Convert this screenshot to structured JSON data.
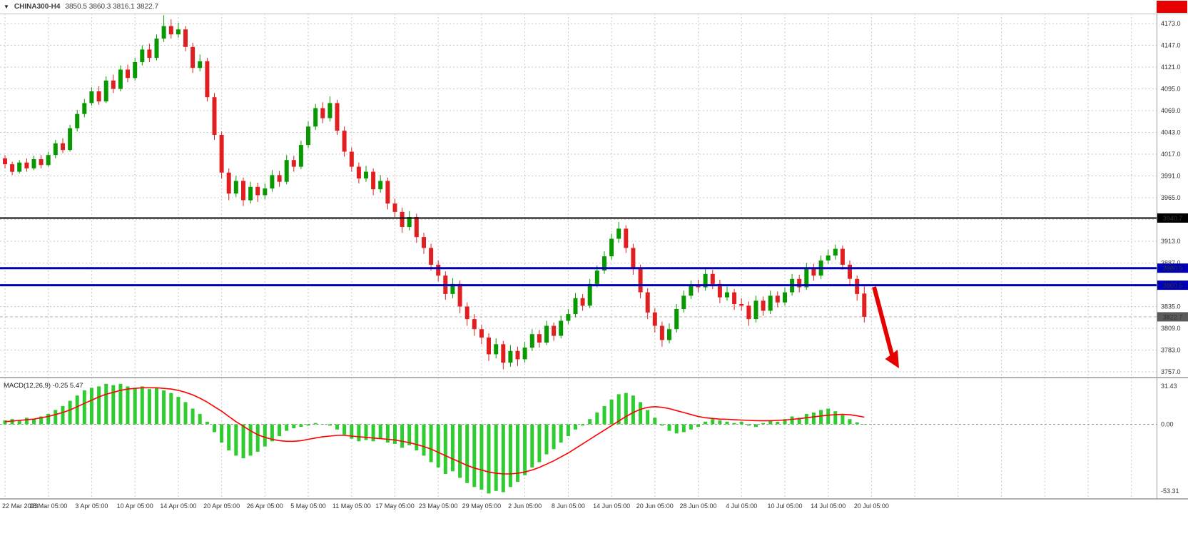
{
  "header": {
    "symbol": "CHINA300-H4",
    "ohlc": "3850.5 3860.3 3816.1 3822.7"
  },
  "icons": {
    "dropdown": "▼"
  },
  "chart_data": {
    "type": "candlestick",
    "symbol": "CHINA300",
    "timeframe": "H4",
    "y_axis": {
      "top": 4173.0,
      "bottom": 3757.0,
      "grid_step": 26.0,
      "ticks_shown": [
        4173.0,
        4147.0,
        4121.0,
        4095.0,
        4069.0,
        4043.0,
        4017.0,
        3991.0,
        3965.0,
        3913.0,
        3887.0,
        3835.0,
        3809.0,
        3783.0,
        3757.0
      ]
    },
    "x_labels": [
      "22 Mar 2023",
      "28 Mar 05:00",
      "3 Apr 05:00",
      "10 Apr 05:00",
      "14 Apr 05:00",
      "20 Apr 05:00",
      "26 Apr 05:00",
      "5 May 05:00",
      "11 May 05:00",
      "17 May 05:00",
      "23 May 05:00",
      "29 May 05:00",
      "2 Jun 05:00",
      "8 Jun 05:00",
      "14 Jun 05:00",
      "20 Jun 05:00",
      "28 Jun 05:00",
      "4 Jul 05:00",
      "10 Jul 05:00",
      "14 Jul 05:00",
      "20 Jul 05:00"
    ],
    "candles_per_label_interval": 6,
    "candles": [
      [
        4012,
        4016,
        4000,
        4005
      ],
      [
        4005,
        4008,
        3992,
        3996
      ],
      [
        3996,
        4010,
        3994,
        4007
      ],
      [
        4007,
        4012,
        3996,
        4000
      ],
      [
        4000,
        4015,
        3998,
        4011
      ],
      [
        4011,
        4016,
        4000,
        4004
      ],
      [
        4004,
        4020,
        4002,
        4016
      ],
      [
        4016,
        4034,
        4012,
        4030
      ],
      [
        4030,
        4036,
        4018,
        4022
      ],
      [
        4022,
        4052,
        4020,
        4048
      ],
      [
        4048,
        4070,
        4044,
        4065
      ],
      [
        4065,
        4083,
        4061,
        4078
      ],
      [
        4078,
        4097,
        4075,
        4092
      ],
      [
        4092,
        4098,
        4076,
        4080
      ],
      [
        4080,
        4110,
        4078,
        4105
      ],
      [
        4105,
        4112,
        4090,
        4095
      ],
      [
        4095,
        4123,
        4092,
        4118
      ],
      [
        4118,
        4124,
        4103,
        4108
      ],
      [
        4108,
        4132,
        4105,
        4127
      ],
      [
        4127,
        4147,
        4123,
        4142
      ],
      [
        4142,
        4149,
        4127,
        4132
      ],
      [
        4132,
        4160,
        4129,
        4155
      ],
      [
        4155,
        4183,
        4151,
        4170
      ],
      [
        4170,
        4178,
        4155,
        4160
      ],
      [
        4160,
        4174,
        4156,
        4166
      ],
      [
        4166,
        4170,
        4140,
        4145
      ],
      [
        4145,
        4150,
        4114,
        4120
      ],
      [
        4120,
        4136,
        4116,
        4128
      ],
      [
        4128,
        4132,
        4080,
        4085
      ],
      [
        4085,
        4090,
        4034,
        4040
      ],
      [
        4040,
        4044,
        3988,
        3995
      ],
      [
        3995,
        4000,
        3962,
        3970
      ],
      [
        3970,
        3991,
        3966,
        3985
      ],
      [
        3985,
        3989,
        3955,
        3962
      ],
      [
        3962,
        3984,
        3958,
        3978
      ],
      [
        3978,
        3983,
        3960,
        3968
      ],
      [
        3968,
        3982,
        3963,
        3976
      ],
      [
        3976,
        3998,
        3972,
        3992
      ],
      [
        3992,
        3997,
        3978,
        3984
      ],
      [
        3984,
        4016,
        3981,
        4010
      ],
      [
        4010,
        4015,
        3996,
        4002
      ],
      [
        4002,
        4033,
        3999,
        4028
      ],
      [
        4028,
        4056,
        4024,
        4050
      ],
      [
        4050,
        4077,
        4046,
        4072
      ],
      [
        4072,
        4079,
        4054,
        4060
      ],
      [
        4060,
        4086,
        4056,
        4078
      ],
      [
        4078,
        4082,
        4040,
        4045
      ],
      [
        4045,
        4050,
        4014,
        4020
      ],
      [
        4020,
        4025,
        3996,
        4002
      ],
      [
        4002,
        4007,
        3982,
        3988
      ],
      [
        3988,
        4003,
        3984,
        3996
      ],
      [
        3996,
        4000,
        3968,
        3975
      ],
      [
        3975,
        3992,
        3971,
        3985
      ],
      [
        3985,
        3989,
        3951,
        3958
      ],
      [
        3958,
        3964,
        3942,
        3948
      ],
      [
        3948,
        3953,
        3923,
        3930
      ],
      [
        3930,
        3949,
        3926,
        3942
      ],
      [
        3942,
        3946,
        3911,
        3918
      ],
      [
        3918,
        3923,
        3898,
        3905
      ],
      [
        3905,
        3910,
        3878,
        3885
      ],
      [
        3885,
        3890,
        3865,
        3872
      ],
      [
        3872,
        3877,
        3843,
        3850
      ],
      [
        3850,
        3869,
        3845,
        3862
      ],
      [
        3862,
        3866,
        3827,
        3835
      ],
      [
        3835,
        3840,
        3812,
        3820
      ],
      [
        3820,
        3826,
        3800,
        3808
      ],
      [
        3808,
        3813,
        3790,
        3798
      ],
      [
        3798,
        3803,
        3770,
        3778
      ],
      [
        3778,
        3797,
        3773,
        3790
      ],
      [
        3790,
        3794,
        3760,
        3768
      ],
      [
        3768,
        3789,
        3763,
        3782
      ],
      [
        3782,
        3787,
        3764,
        3772
      ],
      [
        3772,
        3793,
        3768,
        3786
      ],
      [
        3786,
        3808,
        3782,
        3802
      ],
      [
        3802,
        3807,
        3786,
        3792
      ],
      [
        3792,
        3818,
        3789,
        3812
      ],
      [
        3812,
        3816,
        3794,
        3800
      ],
      [
        3800,
        3824,
        3797,
        3818
      ],
      [
        3818,
        3832,
        3814,
        3826
      ],
      [
        3826,
        3851,
        3822,
        3845
      ],
      [
        3845,
        3850,
        3830,
        3836
      ],
      [
        3836,
        3868,
        3833,
        3862
      ],
      [
        3862,
        3884,
        3858,
        3878
      ],
      [
        3878,
        3901,
        3874,
        3895
      ],
      [
        3895,
        3922,
        3891,
        3916
      ],
      [
        3916,
        3936,
        3911,
        3928
      ],
      [
        3928,
        3932,
        3899,
        3905
      ],
      [
        3905,
        3910,
        3873,
        3880
      ],
      [
        3880,
        3885,
        3845,
        3852
      ],
      [
        3852,
        3857,
        3820,
        3828
      ],
      [
        3828,
        3833,
        3804,
        3812
      ],
      [
        3812,
        3817,
        3787,
        3795
      ],
      [
        3795,
        3815,
        3791,
        3808
      ],
      [
        3808,
        3838,
        3804,
        3832
      ],
      [
        3832,
        3854,
        3828,
        3848
      ],
      [
        3848,
        3866,
        3844,
        3860
      ],
      [
        3860,
        3867,
        3852,
        3858
      ],
      [
        3858,
        3881,
        3854,
        3874
      ],
      [
        3874,
        3879,
        3856,
        3862
      ],
      [
        3862,
        3867,
        3839,
        3846
      ],
      [
        3846,
        3859,
        3842,
        3852
      ],
      [
        3852,
        3856,
        3831,
        3838
      ],
      [
        3838,
        3845,
        3830,
        3836
      ],
      [
        3836,
        3841,
        3812,
        3820
      ],
      [
        3820,
        3848,
        3816,
        3842
      ],
      [
        3842,
        3847,
        3824,
        3830
      ],
      [
        3830,
        3854,
        3826,
        3848
      ],
      [
        3848,
        3853,
        3834,
        3840
      ],
      [
        3840,
        3858,
        3836,
        3852
      ],
      [
        3852,
        3874,
        3848,
        3868
      ],
      [
        3868,
        3873,
        3852,
        3858
      ],
      [
        3858,
        3887,
        3855,
        3880
      ],
      [
        3880,
        3886,
        3866,
        3872
      ],
      [
        3872,
        3896,
        3868,
        3890
      ],
      [
        3890,
        3903,
        3886,
        3896
      ],
      [
        3896,
        3909,
        3891,
        3904
      ],
      [
        3904,
        3908,
        3879,
        3885
      ],
      [
        3885,
        3890,
        3861,
        3868
      ],
      [
        3868,
        3872,
        3842,
        3850
      ],
      [
        3850.5,
        3860.3,
        3816.1,
        3822.7
      ]
    ],
    "horizontal_lines": [
      {
        "price": 3940.7,
        "label": "3940.7",
        "color": "#000000",
        "width": 2
      },
      {
        "price": 3880.9,
        "label": "3880.9",
        "color": "#0000b4",
        "width": 3
      },
      {
        "price": 3860.5,
        "label": "3860.5",
        "color": "#0000b4",
        "width": 3
      }
    ],
    "current_price": {
      "value": 3822.7,
      "label": "3822.7",
      "badge_color": "#5a5a5a",
      "line_color": "#b4b4b4"
    },
    "annotations": {
      "arrow": {
        "direction": "down-right",
        "color": "#e60000"
      },
      "red_box_top_right": {
        "color": "#e60000"
      }
    },
    "colors": {
      "bull": "#089800",
      "bear": "#e02020",
      "grid": "#c9c9c9",
      "separator": "#9a9a9a"
    },
    "macd": {
      "label": "MACD(12,26,9) -0.25 5.47",
      "params": "12,26,9",
      "axis_labels": [
        {
          "value": 31.43,
          "text": "31.43"
        },
        {
          "value": 0,
          "text": "0.00"
        },
        {
          "value": -53.31,
          "text": "-53.31"
        }
      ],
      "axis_max": 31.43,
      "axis_min": -53.31,
      "histogram_color": "#2ecc2e",
      "signal_color": "#ff0000",
      "histogram": [
        3,
        4,
        3,
        5,
        4,
        6,
        8,
        11,
        14,
        18,
        22,
        26,
        28,
        29,
        31,
        30,
        31,
        29,
        28,
        29,
        27,
        28,
        26,
        24,
        21,
        17,
        12,
        8,
        2,
        -6,
        -14,
        -20,
        -24,
        -26,
        -24,
        -21,
        -17,
        -13,
        -9,
        -5,
        -3,
        -2,
        -1,
        1,
        0,
        -1,
        -4,
        -8,
        -11,
        -13,
        -12,
        -13,
        -11,
        -14,
        -15,
        -18,
        -16,
        -20,
        -24,
        -29,
        -33,
        -38,
        -36,
        -41,
        -45,
        -48,
        -50,
        -53,
        -51,
        -52,
        -48,
        -44,
        -39,
        -33,
        -29,
        -23,
        -19,
        -14,
        -9,
        -4,
        -1,
        4,
        9,
        14,
        19,
        23,
        24,
        22,
        17,
        11,
        5,
        -1,
        -5,
        -7,
        -6,
        -4,
        -2,
        2,
        4,
        3,
        2,
        1,
        2,
        -1,
        -2,
        1,
        3,
        2,
        4,
        6,
        5,
        8,
        9,
        11,
        12,
        10,
        7,
        4,
        1.5,
        -0.25
      ],
      "signal": [
        2,
        2.5,
        3,
        3.5,
        4,
        5,
        6,
        7.5,
        9,
        11,
        13.5,
        16,
        18.5,
        21,
        23,
        24.5,
        26,
        27,
        27.5,
        28,
        28,
        28,
        27.5,
        27,
        26,
        24.5,
        22.5,
        20,
        17,
        13.5,
        10,
        6,
        2,
        -1.5,
        -5,
        -8,
        -10,
        -11.5,
        -12.5,
        -13,
        -13,
        -12.5,
        -11.5,
        -10.5,
        -9.5,
        -9,
        -8.5,
        -8.5,
        -9,
        -9.5,
        -10,
        -10.5,
        -11,
        -11.5,
        -12,
        -13,
        -14,
        -15.5,
        -17,
        -19,
        -21.5,
        -24,
        -26.5,
        -29,
        -31.5,
        -33.5,
        -35,
        -36.5,
        -37.5,
        -38,
        -38,
        -37.5,
        -36.5,
        -35,
        -33,
        -30.5,
        -28,
        -25,
        -22,
        -18.5,
        -15,
        -11.5,
        -8,
        -4.5,
        -1,
        2.5,
        6,
        9,
        11.5,
        13,
        13.5,
        13,
        12,
        10.5,
        9,
        7.5,
        6,
        5,
        4.5,
        4,
        3.8,
        3.5,
        3.3,
        3,
        2.8,
        2.7,
        2.8,
        3,
        3.3,
        3.8,
        4.3,
        5,
        5.7,
        6.4,
        7,
        7.4,
        7.6,
        7.3,
        6.5,
        5.47
      ]
    }
  }
}
